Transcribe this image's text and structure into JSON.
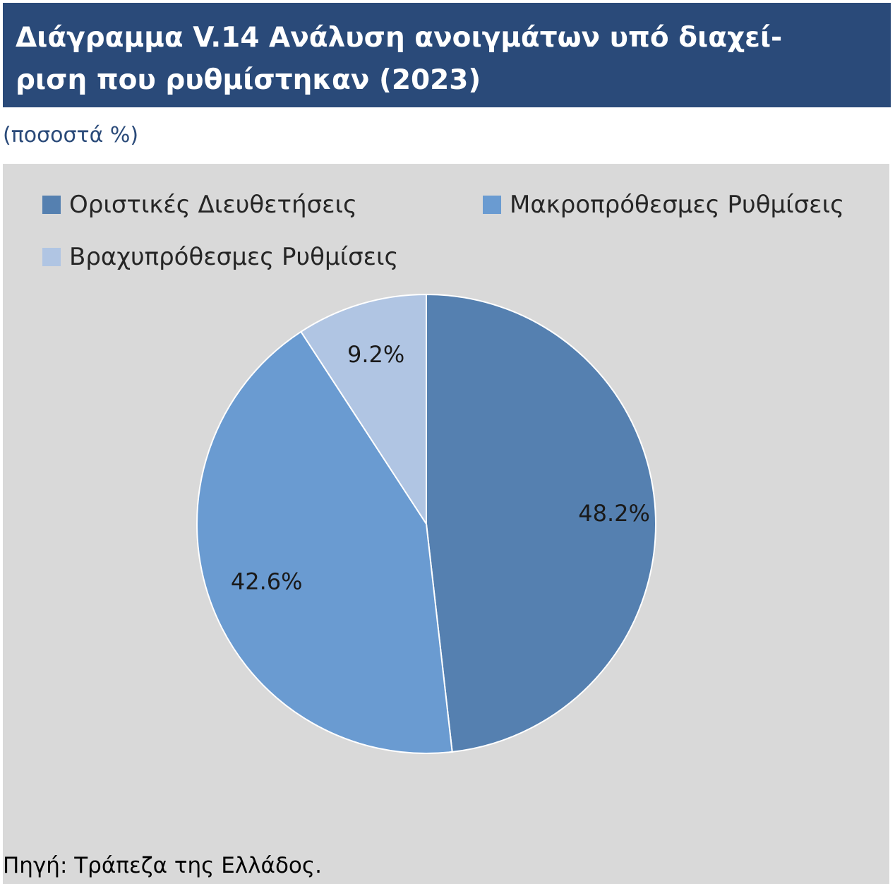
{
  "header": {
    "title": "Διάγραμμα V.14 Ανάλυση ανοιγμάτων υπό διαχεί-\nριση που ρυθμίστηκαν (2023)",
    "subtitle": "(ποσοστά %)"
  },
  "footer": {
    "source": "Πηγή: Τράπεζα της Ελλάδος."
  },
  "chart_data": {
    "type": "pie",
    "title": "Διάγραμμα V.14 Ανάλυση ανοιγμάτων υπό διαχείριση που ρυθμίστηκαν (2023)",
    "unit": "ποσοστά %",
    "legend_position": "top",
    "categories": [
      "Οριστικές Διευθετήσεις",
      "Μακροπρόθεσμες Ρυθμίσεις",
      "Βραχυπρόθεσμες Ρυθμίσεις"
    ],
    "values": [
      48.2,
      42.6,
      9.2
    ],
    "labels": [
      "48.2%",
      "42.6%",
      "9.2%"
    ],
    "colors": [
      "#5580b0",
      "#6a9bd1",
      "#b0c5e3"
    ]
  }
}
